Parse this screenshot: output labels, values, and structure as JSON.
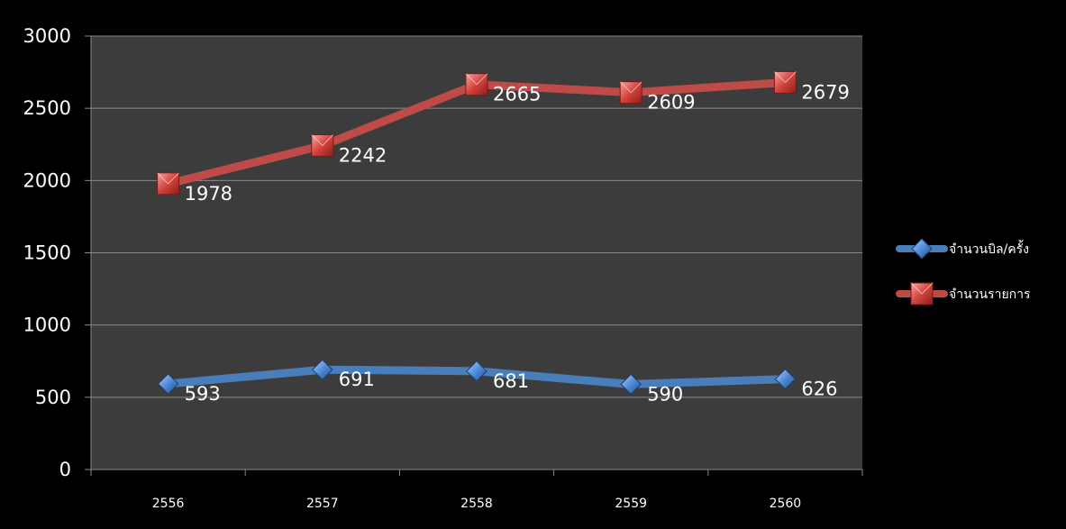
{
  "chart_data": {
    "type": "line",
    "categories": [
      "2556",
      "2557",
      "2558",
      "2559",
      "2560"
    ],
    "series": [
      {
        "name": "จำนวนบิล/ครั้ง",
        "values": [
          593,
          691,
          681,
          590,
          626
        ],
        "color": "#4a7ebb",
        "marker": "diamond"
      },
      {
        "name": "จำนวนรายการ",
        "values": [
          1978,
          2242,
          2665,
          2609,
          2679
        ],
        "color": "#be4b48",
        "marker": "square"
      }
    ],
    "ylim": [
      0,
      3000
    ],
    "yticks": [
      0,
      500,
      1000,
      1500,
      2000,
      2500,
      3000
    ],
    "grid": true,
    "legend_position": "right",
    "data_labels": true,
    "plot_background": "#3c3c3c",
    "page_background": "#000000"
  }
}
